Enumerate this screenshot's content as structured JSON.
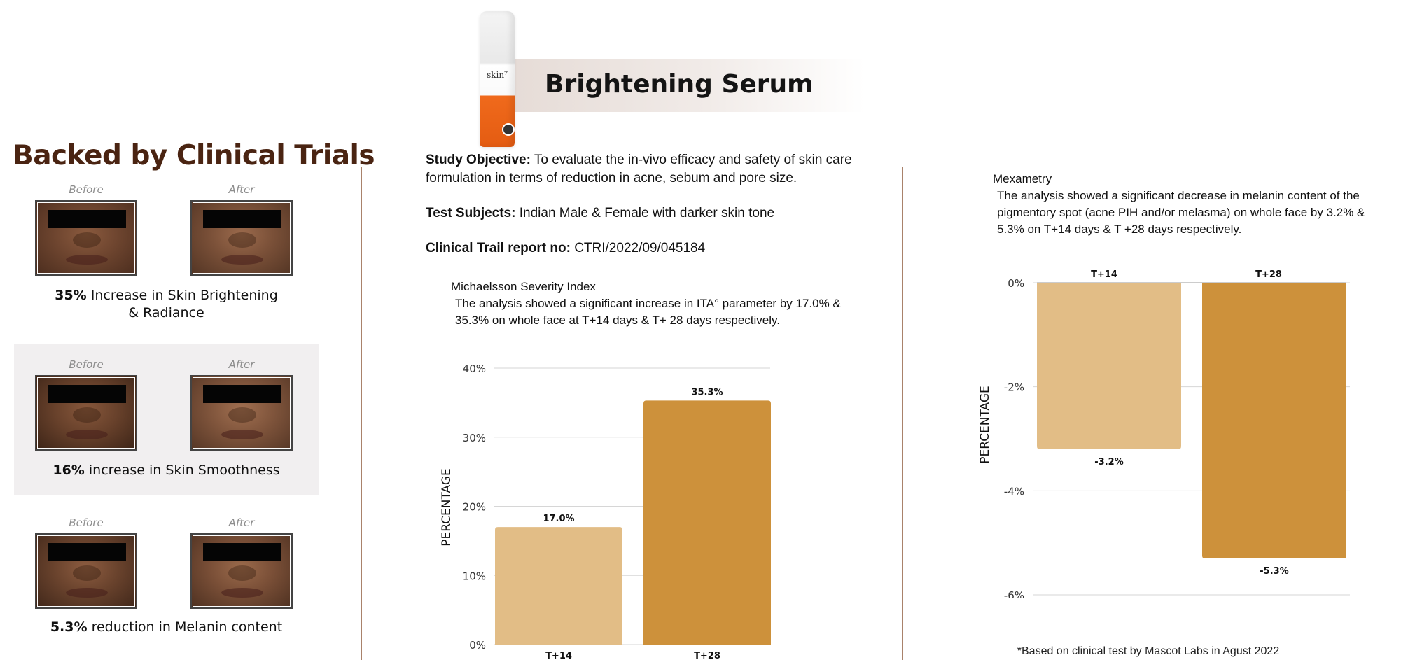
{
  "left": {
    "title": "Backed by Clinical Trials",
    "trials": [
      {
        "before": "Before",
        "after": "After",
        "stat_value": "35%",
        "stat_text": " Increase in Skin Brightening",
        "stat_text2": "& Radiance"
      },
      {
        "before": "Before",
        "after": "After",
        "stat_value": "16%",
        "stat_text": " increase in Skin Smoothness",
        "stat_text2": ""
      },
      {
        "before": "Before",
        "after": "After",
        "stat_value": "5.3%",
        "stat_text": " reduction in Melanin content",
        "stat_text2": ""
      }
    ]
  },
  "product": {
    "bottle_logo": "skin⁷",
    "title": "Brightening Serum"
  },
  "study": {
    "objective_label": "Study Objective:",
    "objective_text": "  To evaluate the in-vivo efficacy and safety of skin care formulation in terms of reduction in acne, sebum and pore size.",
    "subjects_label": "Test Subjects:",
    "subjects_text": " Indian Male & Female with darker skin tone",
    "report_label": "Clinical Trail report no:",
    "report_text": " CTRI/2022/09/045184"
  },
  "chart1_text": {
    "heading": "Michaelsson Severity Index",
    "description": "The analysis showed a significant increase in ITA° parameter by 17.0% & 35.3% on whole face at T+14 days & T+ 28 days respectively."
  },
  "chart2_text": {
    "heading": "Mexametry",
    "description": "The analysis showed a significant decrease in melanin content of the pigmentory spot (acne PIH and/or melasma) on whole face by 3.2% & 5.3% on T+14 days & T +28 days respectively."
  },
  "footnote": "*Based on clinical test by Mascot Labs in Agust 2022",
  "colors": {
    "light_bar": "#e2bd86",
    "dark_bar": "#cd913b",
    "divider": "#a9826b",
    "title_brown": "#4a2412"
  },
  "chart_data": [
    {
      "type": "bar",
      "title": "",
      "categories": [
        "T+14",
        "T+28"
      ],
      "values": [
        17.0,
        35.3
      ],
      "value_labels": [
        "17.0%",
        "35.3%"
      ],
      "ylabel": "PERCENTAGE",
      "ylim": [
        0,
        40
      ],
      "yticks": [
        0,
        10,
        20,
        30,
        40
      ],
      "ytick_labels": [
        "0%",
        "10%",
        "20%",
        "30%",
        "40%"
      ],
      "grid": true,
      "bar_colors": [
        "#e2bd86",
        "#cd913b"
      ]
    },
    {
      "type": "bar",
      "title": "",
      "categories": [
        "T+14",
        "T+28"
      ],
      "values": [
        -3.2,
        -5.3
      ],
      "value_labels": [
        "-3.2%",
        "-5.3%"
      ],
      "ylabel": "PERCENTAGE",
      "ylim": [
        -6,
        0
      ],
      "yticks": [
        0,
        -2,
        -4,
        -6
      ],
      "ytick_labels": [
        "0%",
        "-2%",
        "-4%",
        "-6%"
      ],
      "grid": true,
      "category_position": "top",
      "bar_colors": [
        "#e2bd86",
        "#cd913b"
      ]
    }
  ]
}
